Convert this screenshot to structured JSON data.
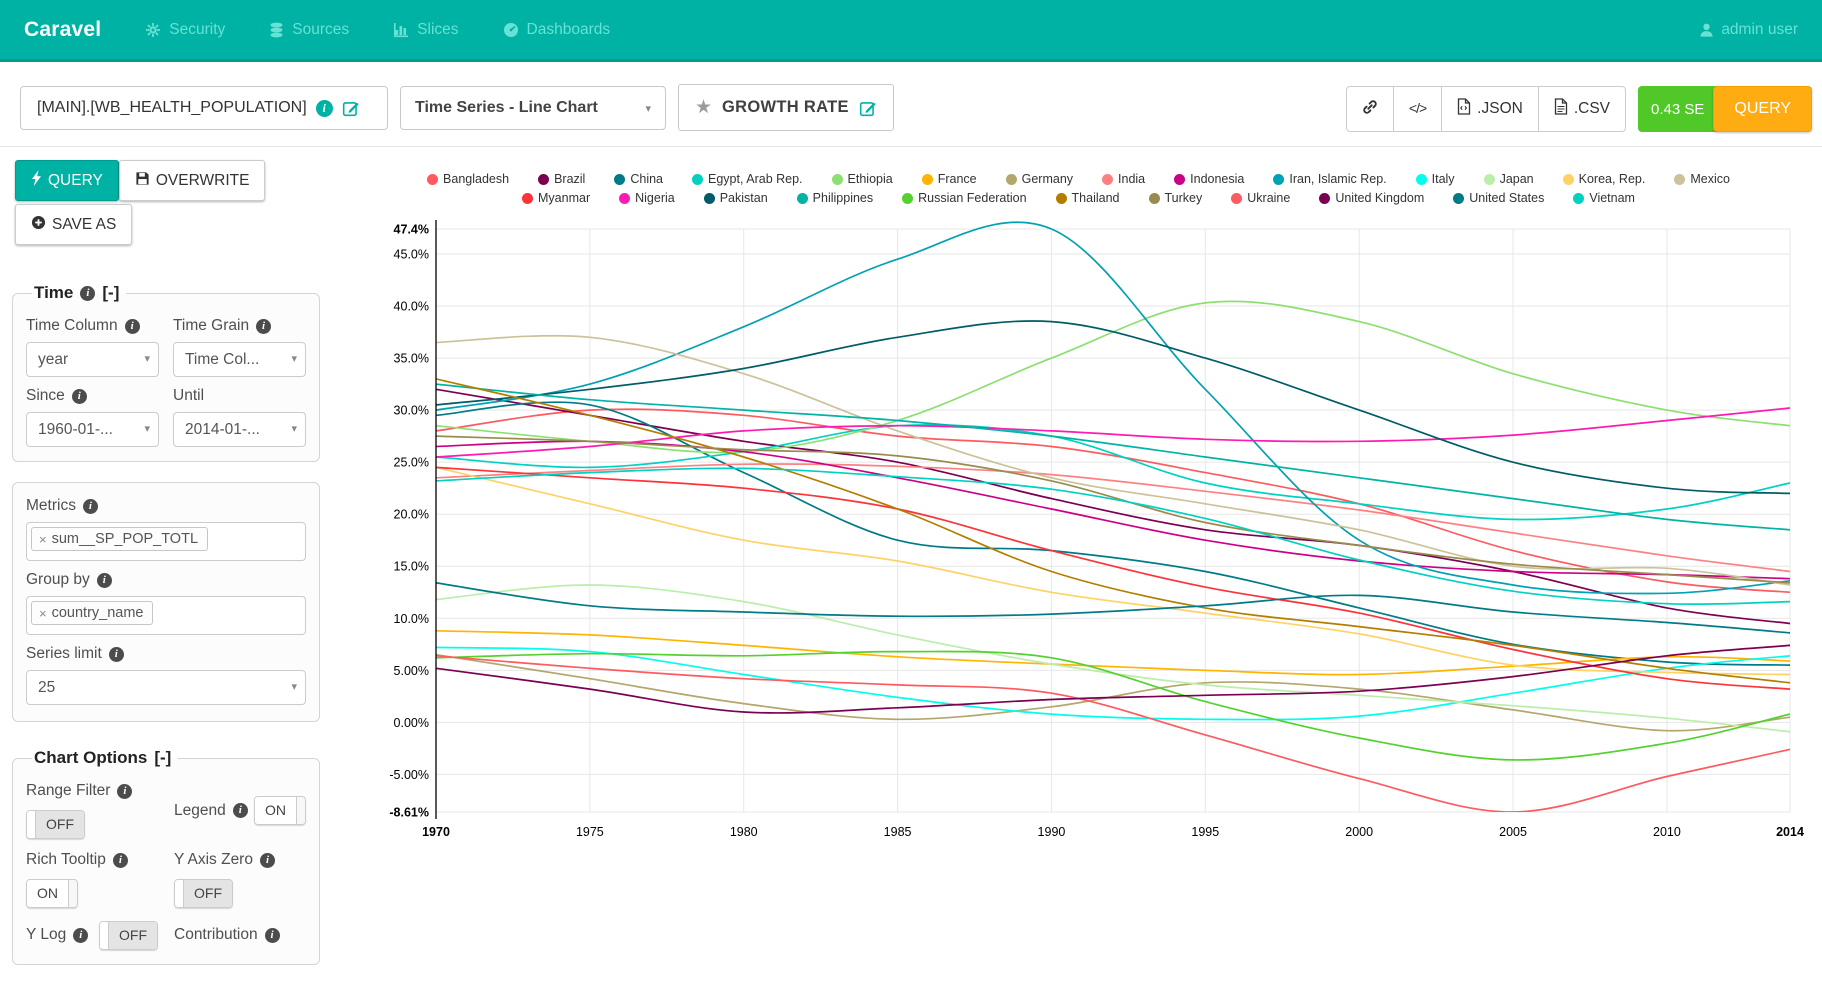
{
  "colors": {
    "navbar": "#00b2a3",
    "nav_link": "#67e2d5",
    "timer_bg": "#50c828",
    "query_button_bg": "#ffab12",
    "grid_line": "#e7e7e7",
    "axis_line": "#000000"
  },
  "nav": {
    "brand": "Caravel",
    "items": [
      {
        "label": "Security",
        "icon": "gears-icon"
      },
      {
        "label": "Sources",
        "icon": "database-icon"
      },
      {
        "label": "Slices",
        "icon": "bar-chart-icon"
      },
      {
        "label": "Dashboards",
        "icon": "dashboard-icon"
      }
    ],
    "user": "admin user"
  },
  "toolbar": {
    "datasource": "[MAIN].[WB_HEALTH_POPULATION]",
    "viz_type": "Time Series - Line Chart",
    "slice_name": "GROWTH RATE",
    "json_label": ".JSON",
    "csv_label": ".CSV",
    "timer": "0.43 SE",
    "query_label": "QUERY"
  },
  "sidebar": {
    "actions": {
      "query": "QUERY",
      "overwrite": "OVERWRITE",
      "save_as": "SAVE AS"
    },
    "time": {
      "legend": "Time",
      "collapse": "[-]",
      "time_column_label": "Time Column",
      "time_column_value": "year",
      "time_grain_label": "Time Grain",
      "time_grain_value": "Time Col...",
      "since_label": "Since",
      "since_value": "1960-01-...",
      "until_label": "Until",
      "until_value": "2014-01-..."
    },
    "group": {
      "metrics_label": "Metrics",
      "metrics_value": "sum__SP_POP_TOTL",
      "groupby_label": "Group by",
      "groupby_value": "country_name",
      "series_limit_label": "Series limit",
      "series_limit_value": "25"
    },
    "chart_options": {
      "legend": "Chart Options",
      "collapse": "[-]",
      "options": [
        {
          "label": "Range Filter",
          "state": "OFF"
        },
        {
          "label": "Legend",
          "state": "ON"
        },
        {
          "label": "Rich Tooltip",
          "state": "ON"
        },
        {
          "label": "Y Axis Zero",
          "state": "OFF"
        },
        {
          "label": "Y Log",
          "state": "OFF"
        },
        {
          "label": "Contribution",
          "state": null
        }
      ]
    }
  },
  "chart_data": {
    "type": "line",
    "title": "GROWTH RATE",
    "xlabel": "",
    "ylabel": "",
    "grid": true,
    "legend_position": "top",
    "ylim": [
      -8.61,
      47.4
    ],
    "x": [
      1970,
      1975,
      1980,
      1985,
      1990,
      1995,
      2000,
      2005,
      2010,
      2014
    ],
    "x_ticks": [
      {
        "value": 1970,
        "label": "1970",
        "bold": true
      },
      {
        "value": 1975,
        "label": "1975",
        "bold": false
      },
      {
        "value": 1980,
        "label": "1980",
        "bold": false
      },
      {
        "value": 1985,
        "label": "1985",
        "bold": false
      },
      {
        "value": 1990,
        "label": "1990",
        "bold": false
      },
      {
        "value": 1995,
        "label": "1995",
        "bold": false
      },
      {
        "value": 2000,
        "label": "2000",
        "bold": false
      },
      {
        "value": 2005,
        "label": "2005",
        "bold": false
      },
      {
        "value": 2010,
        "label": "2010",
        "bold": false
      },
      {
        "value": 2014,
        "label": "2014",
        "bold": true
      }
    ],
    "y_ticks": [
      {
        "value": 47.4,
        "label": "47.4%",
        "bold": true
      },
      {
        "value": 45,
        "label": "45.0%",
        "bold": false
      },
      {
        "value": 40,
        "label": "40.0%",
        "bold": false
      },
      {
        "value": 35,
        "label": "35.0%",
        "bold": false
      },
      {
        "value": 30,
        "label": "30.0%",
        "bold": false
      },
      {
        "value": 25,
        "label": "25.0%",
        "bold": false
      },
      {
        "value": 20,
        "label": "20.0%",
        "bold": false
      },
      {
        "value": 15,
        "label": "15.0%",
        "bold": false
      },
      {
        "value": 10,
        "label": "10.0%",
        "bold": false
      },
      {
        "value": 5,
        "label": "5.00%",
        "bold": false
      },
      {
        "value": 0,
        "label": "0.00%",
        "bold": false
      },
      {
        "value": -5,
        "label": "-5.00%",
        "bold": false
      },
      {
        "value": -8.61,
        "label": "-8.61%",
        "bold": true
      }
    ],
    "legend_row_split": 14,
    "series": [
      {
        "name": "Bangladesh",
        "color": "#ff5a5f",
        "values": [
          28,
          30,
          29.5,
          27.5,
          26.5,
          24,
          21,
          16.5,
          13.5,
          12.5
        ]
      },
      {
        "name": "Brazil",
        "color": "#7b0051",
        "values": [
          32,
          29.5,
          27,
          25,
          21.5,
          18.5,
          17,
          14.5,
          11,
          9.5
        ]
      },
      {
        "name": "China",
        "color": "#007A87",
        "values": [
          29.5,
          30.5,
          24,
          17.5,
          16.5,
          14.5,
          11,
          7.5,
          5.8,
          5.5
        ]
      },
      {
        "name": "Egypt, Arab Rep.",
        "color": "#00d1c1",
        "values": [
          25.5,
          24.5,
          26,
          28.5,
          27.5,
          23,
          21,
          19.5,
          20.5,
          23
        ]
      },
      {
        "name": "Ethiopia",
        "color": "#8ce071",
        "values": [
          28.5,
          27,
          26,
          29,
          35,
          40.3,
          38.5,
          33.5,
          30,
          28.5
        ]
      },
      {
        "name": "France",
        "color": "#ffb400",
        "values": [
          8.8,
          8.4,
          7.4,
          6.3,
          5.6,
          5.0,
          4.6,
          5.4,
          6.3,
          5.9
        ]
      },
      {
        "name": "Germany",
        "color": "#b4a76c",
        "values": [
          6.5,
          4.2,
          1.8,
          0.3,
          1.5,
          3.8,
          3.2,
          1.2,
          -0.8,
          0.5
        ]
      },
      {
        "name": "India",
        "color": "#ff8083",
        "values": [
          23.5,
          24.2,
          24.8,
          24.6,
          23.8,
          22.2,
          20.4,
          18.2,
          16,
          14.5
        ]
      },
      {
        "name": "Indonesia",
        "color": "#cc0086",
        "values": [
          26.5,
          27,
          26,
          23.5,
          20.5,
          17.5,
          15.5,
          14.5,
          14.2,
          13.8
        ]
      },
      {
        "name": "Iran, Islamic Rep.",
        "color": "#00a1b3",
        "values": [
          30,
          32.5,
          38,
          44.5,
          47.4,
          32,
          17.5,
          13.2,
          12.4,
          13.6
        ]
      },
      {
        "name": "Italy",
        "color": "#00ffeb",
        "values": [
          7.2,
          6.8,
          4.6,
          2.4,
          0.8,
          0.3,
          0.6,
          2.8,
          5.2,
          6.4
        ]
      },
      {
        "name": "Japan",
        "color": "#bbedab",
        "values": [
          11.8,
          13.2,
          11.6,
          8.4,
          5.6,
          3.6,
          2.6,
          1.6,
          0.4,
          -0.9
        ]
      },
      {
        "name": "Korea, Rep.",
        "color": "#ffd266",
        "values": [
          24.5,
          21,
          17.5,
          15.5,
          12.5,
          10.5,
          8.5,
          5.5,
          4.8,
          4.6
        ]
      },
      {
        "name": "Mexico",
        "color": "#cbc29a",
        "values": [
          36.5,
          37,
          33.5,
          28,
          23.5,
          21,
          18.5,
          15,
          14.8,
          13.2
        ]
      },
      {
        "name": "Myanmar",
        "color": "#ff3339",
        "values": [
          24.5,
          23.5,
          22.5,
          20.5,
          16.5,
          13,
          10.5,
          7,
          4.2,
          3.2
        ]
      },
      {
        "name": "Nigeria",
        "color": "#ff1ab1",
        "values": [
          25.5,
          26.5,
          28,
          28.5,
          28,
          27.2,
          27,
          27.6,
          29,
          30.2
        ]
      },
      {
        "name": "Pakistan",
        "color": "#005c66",
        "values": [
          30.5,
          32,
          34,
          37,
          38.5,
          35,
          30,
          25,
          22.5,
          22
        ]
      },
      {
        "name": "Philippines",
        "color": "#00b3a5",
        "values": [
          32.5,
          31,
          30,
          29,
          27.5,
          25.5,
          23.5,
          21.5,
          19.5,
          18.5
        ]
      },
      {
        "name": "Russian Federation",
        "color": "#55d12e",
        "values": [
          6.2,
          6.6,
          6.4,
          6.8,
          6.2,
          2.0,
          -1.5,
          -3.6,
          -2.0,
          0.8
        ]
      },
      {
        "name": "Thailand",
        "color": "#b37e00",
        "values": [
          33,
          29.5,
          25.5,
          20.5,
          14.5,
          11,
          9.2,
          7.4,
          5.2,
          3.8
        ]
      },
      {
        "name": "Turkey",
        "color": "#988b4e",
        "values": [
          27.5,
          27,
          26.2,
          25.6,
          23.2,
          19.2,
          17,
          15.2,
          14.2,
          13.4
        ]
      },
      {
        "name": "Ukraine",
        "color": "#ff5a5f",
        "values": [
          6.4,
          5.2,
          4.2,
          3.6,
          2.8,
          -1.2,
          -5.4,
          -8.61,
          -5.2,
          -2.6
        ]
      },
      {
        "name": "United Kingdom",
        "color": "#7b0051",
        "values": [
          5.2,
          3.2,
          1.0,
          1.4,
          2.2,
          2.6,
          3.0,
          4.4,
          6.4,
          7.4
        ]
      },
      {
        "name": "United States",
        "color": "#007A87",
        "values": [
          13.4,
          11.2,
          10.6,
          10.2,
          10.4,
          11.2,
          12.2,
          10.6,
          9.6,
          8.6
        ]
      },
      {
        "name": "Vietnam",
        "color": "#00d1c1",
        "values": [
          23.2,
          24.0,
          24.4,
          23.6,
          22.4,
          19.6,
          15.6,
          12.6,
          11.4,
          11.6
        ]
      }
    ]
  }
}
